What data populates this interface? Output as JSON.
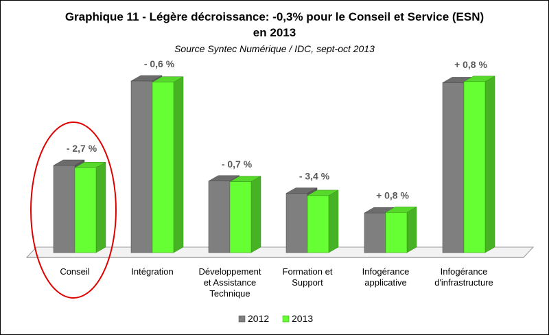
{
  "chart_data": {
    "type": "bar",
    "title_line1": "Graphique 11 - Légère décroissance: -0,3% pour le Conseil et Service (ESN)",
    "title_line2": "en 2013",
    "subtitle": "Source Syntec Numérique / IDC, sept-oct 2013",
    "categories": [
      [
        "Conseil"
      ],
      [
        "Intégration"
      ],
      [
        "Développement",
        "et Assistance",
        "Technique"
      ],
      [
        "Formation et",
        "Support"
      ],
      [
        "Infogérance",
        "applicative"
      ],
      [
        "Infogérance",
        "d'infrastructure"
      ]
    ],
    "series": [
      {
        "name": "2012",
        "values": [
          15.6,
          30.7,
          12.8,
          10.6,
          7.1,
          30.4
        ],
        "color": "#7f7f7f"
      },
      {
        "name": "2013",
        "values": [
          15.2,
          30.5,
          12.7,
          10.2,
          7.2,
          30.6
        ],
        "color": "#66ff33"
      }
    ],
    "data_labels": [
      "- 2,7 %",
      "- 0,6 %",
      "- 0,7 %",
      "- 3,4 %",
      "+ 0,8 %",
      "+ 0,8 %"
    ],
    "ylim": [
      0,
      35
    ],
    "grid": false,
    "legend": "bottom",
    "highlight": {
      "category_index": 0,
      "shape": "ellipse",
      "color": "#e00000"
    }
  }
}
